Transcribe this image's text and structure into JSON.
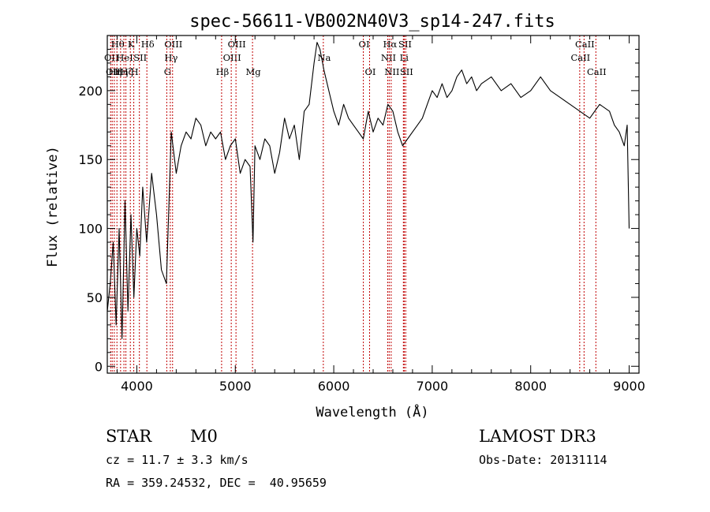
{
  "chart_data": {
    "type": "line",
    "title": "spec-56611-VB002N40V3_sp14-247.fits",
    "xlabel": "Wavelength (Å)",
    "ylabel": "Flux (relative)",
    "xlim": [
      3700,
      9100
    ],
    "ylim": [
      -5,
      240
    ],
    "xticks": [
      4000,
      5000,
      6000,
      7000,
      8000,
      9000
    ],
    "yticks": [
      0,
      50,
      100,
      150,
      200
    ],
    "series": [
      {
        "name": "flux",
        "x": [
          3700,
          3730,
          3760,
          3790,
          3820,
          3850,
          3880,
          3910,
          3940,
          3970,
          4000,
          4030,
          4060,
          4100,
          4150,
          4200,
          4250,
          4300,
          4350,
          4400,
          4450,
          4500,
          4550,
          4600,
          4650,
          4700,
          4750,
          4800,
          4850,
          4900,
          4950,
          5000,
          5050,
          5100,
          5150,
          5180,
          5200,
          5250,
          5300,
          5350,
          5400,
          5450,
          5500,
          5550,
          5600,
          5650,
          5700,
          5750,
          5800,
          5830,
          5860,
          5900,
          5950,
          6000,
          6050,
          6100,
          6150,
          6200,
          6250,
          6300,
          6350,
          6400,
          6450,
          6500,
          6550,
          6600,
          6650,
          6700,
          6750,
          6800,
          6850,
          6900,
          6950,
          7000,
          7050,
          7100,
          7150,
          7200,
          7250,
          7300,
          7350,
          7400,
          7450,
          7500,
          7600,
          7700,
          7800,
          7900,
          8000,
          8100,
          8200,
          8300,
          8400,
          8500,
          8600,
          8700,
          8800,
          8850,
          8900,
          8950,
          8980,
          9000
        ],
        "y": [
          40,
          60,
          90,
          30,
          100,
          20,
          120,
          40,
          110,
          50,
          100,
          80,
          130,
          90,
          140,
          110,
          70,
          60,
          170,
          140,
          160,
          170,
          165,
          180,
          175,
          160,
          170,
          165,
          170,
          150,
          160,
          165,
          140,
          150,
          145,
          90,
          160,
          150,
          165,
          160,
          140,
          155,
          180,
          165,
          175,
          150,
          185,
          190,
          220,
          235,
          230,
          215,
          200,
          185,
          175,
          190,
          180,
          175,
          170,
          165,
          185,
          170,
          180,
          175,
          190,
          185,
          170,
          160,
          165,
          170,
          175,
          180,
          190,
          200,
          195,
          205,
          195,
          200,
          210,
          215,
          205,
          210,
          200,
          205,
          210,
          200,
          205,
          195,
          200,
          210,
          200,
          195,
          190,
          185,
          180,
          190,
          185,
          175,
          170,
          160,
          175,
          100
        ],
        "color": "#000000"
      }
    ],
    "lines": [
      {
        "x": 3734,
        "label": "OII",
        "row": 2
      },
      {
        "x": 3750,
        "label": "OII",
        "row": 3
      },
      {
        "x": 3771,
        "label": "Hη",
        "row": 3
      },
      {
        "x": 3798,
        "label": "Hθ",
        "row": 1
      },
      {
        "x": 3835,
        "label": "Hη",
        "row": 3
      },
      {
        "x": 3869,
        "label": "HeI",
        "row": 2
      },
      {
        "x": 3889,
        "label": "Hζ",
        "row": 3
      },
      {
        "x": 3934,
        "label": "K",
        "row": 1
      },
      {
        "x": 3969,
        "label": "H",
        "row": 3
      },
      {
        "x": 4026,
        "label": "SII",
        "row": 2
      },
      {
        "x": 4102,
        "label": "Hδ",
        "row": 1
      },
      {
        "x": 4304,
        "label": "G",
        "row": 3
      },
      {
        "x": 4340,
        "label": "Hγ",
        "row": 2
      },
      {
        "x": 4363,
        "label": "OIII",
        "row": 1
      },
      {
        "x": 4861,
        "label": "Hβ",
        "row": 3
      },
      {
        "x": 4959,
        "label": "OIII",
        "row": 2
      },
      {
        "x": 5007,
        "label": "OIII",
        "row": 1
      },
      {
        "x": 5175,
        "label": "Mg",
        "row": 3
      },
      {
        "x": 5894,
        "label": "Na",
        "row": 2
      },
      {
        "x": 6300,
        "label": "OI",
        "row": 1
      },
      {
        "x": 6364,
        "label": "OI",
        "row": 3
      },
      {
        "x": 6548,
        "label": "NII",
        "row": 2
      },
      {
        "x": 6563,
        "label": "Hα",
        "row": 1
      },
      {
        "x": 6583,
        "label": "NII",
        "row": 3
      },
      {
        "x": 6707,
        "label": "Li",
        "row": 2
      },
      {
        "x": 6716,
        "label": "SII",
        "row": 1
      },
      {
        "x": 6731,
        "label": "SII",
        "row": 3
      },
      {
        "x": 8498,
        "label": "CaII",
        "row": 2
      },
      {
        "x": 8542,
        "label": "CaII",
        "row": 1
      },
      {
        "x": 8662,
        "label": "CaII",
        "row": 3
      }
    ]
  },
  "info": {
    "class": "STAR",
    "subclass": "M0",
    "survey": "LAMOST DR3",
    "cz": "cz = 11.7 ± 3.3 km/s",
    "obs_date": "Obs-Date: 20131114",
    "radec": "RA = 359.24532, DEC =  40.95659"
  }
}
